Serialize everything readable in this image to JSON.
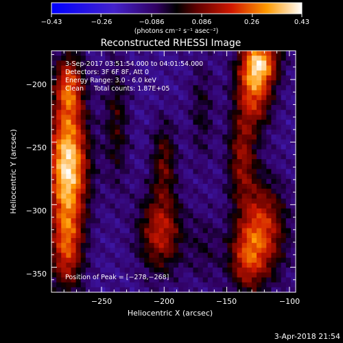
{
  "chart_data": {
    "type": "heatmap",
    "title": "Reconstructed RHESSI Image",
    "xlabel": "Heliocentric X (arcsec)",
    "ylabel": "Heliocentric Y (arcsec)",
    "xlim": [
      -290,
      -95
    ],
    "ylim": [
      -370,
      -177
    ],
    "x_ticks": [
      -250,
      -200,
      -150,
      -100
    ],
    "x_tick_labels": [
      "−250",
      "−200",
      "−150",
      "−100"
    ],
    "y_ticks": [
      -200,
      -250,
      -300,
      -350
    ],
    "y_tick_labels": [
      "−200",
      "−250",
      "−300",
      "−350"
    ],
    "colorbar": {
      "min": -0.43,
      "max": 0.43,
      "ticks": [
        -0.43,
        -0.26,
        -0.086,
        0.086,
        0.26,
        0.43
      ],
      "tick_labels": [
        "−0.43",
        "−0.26",
        "−0.086",
        "0.086",
        "0.26",
        "0.43"
      ],
      "unit_label": "(photons cm⁻² s⁻¹ asec⁻²)"
    },
    "annotations": [
      "3-Sep-2017 03:51:54.000 to 04:01:54.000",
      "Detectors: 3F 6F 8F, Att 0",
      "Energy Range: 3.0 - 6.0 keV",
      "Clean     Total counts: 1.87E+05"
    ],
    "peak_label": "Position of Peak = [−278,−268]",
    "peak_position": [
      -278,
      -268
    ],
    "sources": [
      {
        "x": -277,
        "y": -268,
        "sx": 11,
        "sy": 33,
        "amp": 0.52
      },
      {
        "x": -276,
        "y": -205,
        "sx": 8,
        "sy": 18,
        "amp": 0.3
      },
      {
        "x": -278,
        "y": -335,
        "sx": 9,
        "sy": 25,
        "amp": 0.3
      },
      {
        "x": -128,
        "y": -205,
        "sx": 10,
        "sy": 22,
        "amp": 0.36
      },
      {
        "x": -122,
        "y": -185,
        "sx": 10,
        "sy": 12,
        "amp": 0.3
      },
      {
        "x": -138,
        "y": -262,
        "sx": 8,
        "sy": 26,
        "amp": 0.22
      },
      {
        "x": -122,
        "y": -320,
        "sx": 13,
        "sy": 26,
        "amp": 0.32
      },
      {
        "x": -135,
        "y": -345,
        "sx": 10,
        "sy": 18,
        "amp": 0.22
      },
      {
        "x": -203,
        "y": -322,
        "sx": 12,
        "sy": 22,
        "amp": 0.28
      },
      {
        "x": -200,
        "y": -265,
        "sx": 7,
        "sy": 22,
        "amp": 0.18
      },
      {
        "x": -238,
        "y": -235,
        "sx": 7,
        "sy": 35,
        "amp": 0.14
      },
      {
        "x": -170,
        "y": -225,
        "sx": 7,
        "sy": 30,
        "amp": 0.1
      },
      {
        "x": -168,
        "y": -335,
        "sx": 9,
        "sy": 20,
        "amp": 0.08
      }
    ],
    "baseline": -0.12,
    "colormap": "blue-purple-black-red-yellow-white"
  },
  "footer": {
    "date": "3-Apr-2018 21:54"
  }
}
